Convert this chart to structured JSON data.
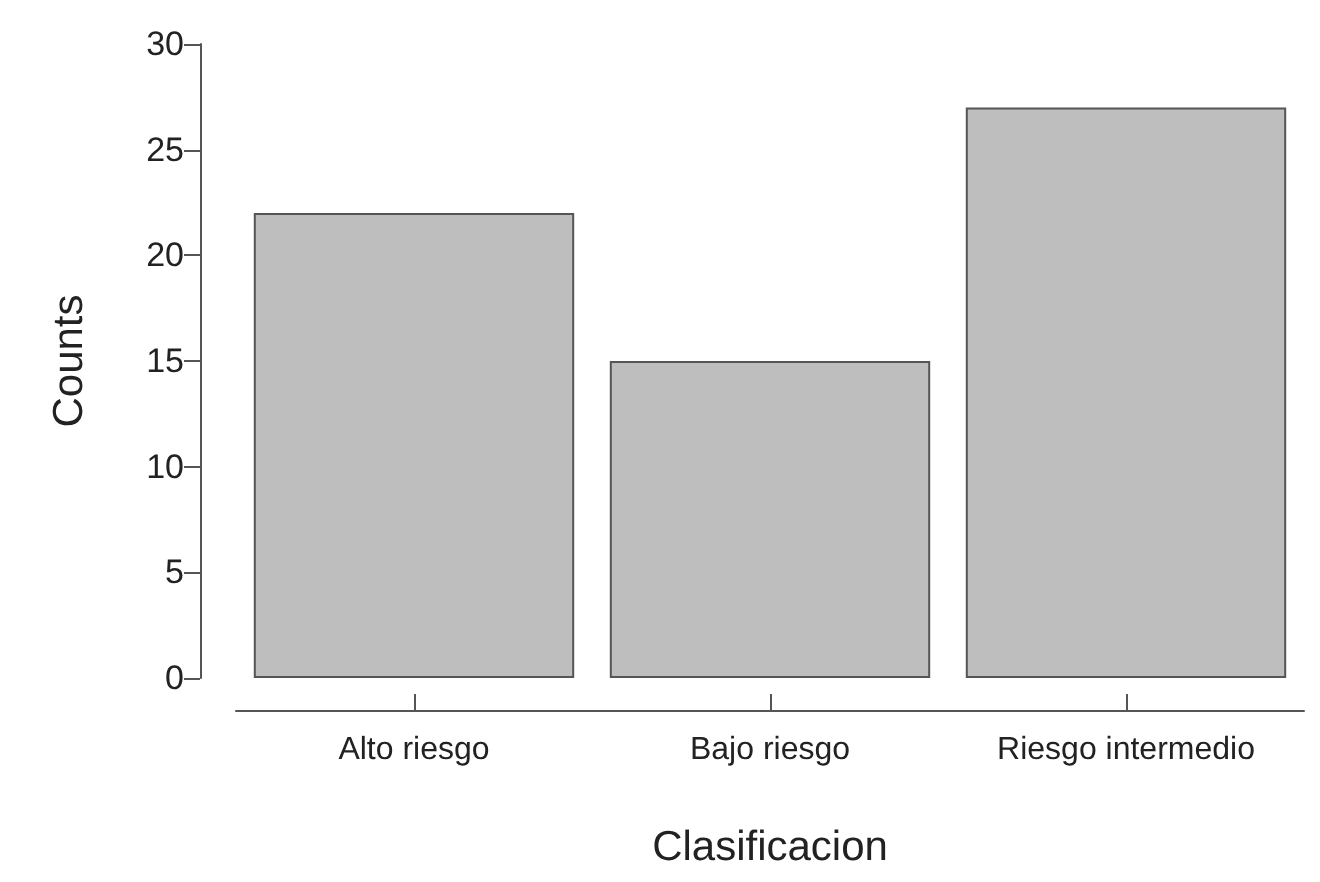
{
  "chart_data": {
    "type": "bar",
    "xlabel": "Clasificacion",
    "ylabel": "Counts",
    "categories": [
      "Alto riesgo",
      "Bajo riesgo",
      "Riesgo intermedio"
    ],
    "values": [
      22,
      15,
      27
    ],
    "color": "#bebebe",
    "ylim": [
      0,
      30
    ],
    "yticks": [
      0,
      5,
      10,
      15,
      20,
      25,
      30
    ],
    "grid": false
  }
}
